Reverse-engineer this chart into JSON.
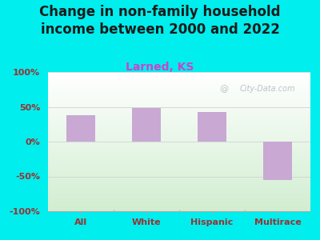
{
  "title": "Change in non-family household\nincome between 2000 and 2022",
  "subtitle": "Larned, KS",
  "categories": [
    "All",
    "White",
    "Hispanic",
    "Multirace"
  ],
  "values": [
    38,
    48,
    43,
    -55
  ],
  "bar_color": "#C9A8D4",
  "background_outer": "#00EEEE",
  "ylim": [
    -100,
    100
  ],
  "yticks": [
    -100,
    -50,
    0,
    50,
    100
  ],
  "ytick_labels": [
    "-100%",
    "-50%",
    "0%",
    "50%",
    "100%"
  ],
  "title_fontsize": 12,
  "subtitle_fontsize": 10,
  "subtitle_color": "#CC44CC",
  "title_color": "#1a1a1a",
  "tick_color": "#993333",
  "watermark": "City-Data.com"
}
